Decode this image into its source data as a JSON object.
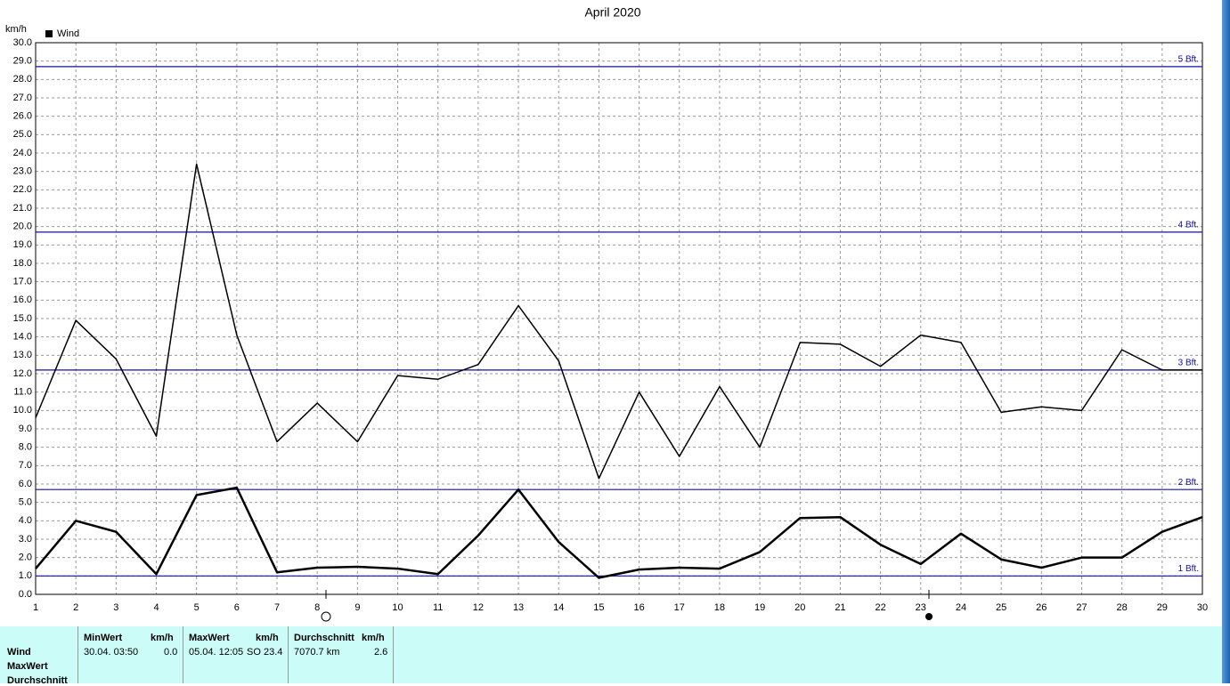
{
  "chart_data": {
    "type": "line",
    "title": "April 2020",
    "y_label": "km/h",
    "x": [
      1,
      2,
      3,
      4,
      5,
      6,
      7,
      8,
      9,
      10,
      11,
      12,
      13,
      14,
      15,
      16,
      17,
      18,
      19,
      20,
      21,
      22,
      23,
      24,
      25,
      26,
      27,
      28,
      29,
      30
    ],
    "xlim": [
      1,
      30
    ],
    "xticks": [
      1,
      2,
      3,
      4,
      5,
      6,
      7,
      8,
      9,
      10,
      11,
      12,
      13,
      14,
      15,
      16,
      17,
      18,
      19,
      20,
      21,
      22,
      23,
      24,
      25,
      26,
      27,
      28,
      29,
      30
    ],
    "ylim": [
      0,
      30
    ],
    "yticks": [
      {
        "value": 0,
        "label": "0.0"
      },
      {
        "value": 1,
        "label": "1.0"
      },
      {
        "value": 2,
        "label": "2.0"
      },
      {
        "value": 3,
        "label": "3.0"
      },
      {
        "value": 4,
        "label": "4.0"
      },
      {
        "value": 5,
        "label": "5.0"
      },
      {
        "value": 6,
        "label": "6.0"
      },
      {
        "value": 7,
        "label": "7.0"
      },
      {
        "value": 8,
        "label": "8.0"
      },
      {
        "value": 9,
        "label": "9.0"
      },
      {
        "value": 10,
        "label": "10.0"
      },
      {
        "value": 11,
        "label": "11.0"
      },
      {
        "value": 12,
        "label": "12.0"
      },
      {
        "value": 13,
        "label": "13.0"
      },
      {
        "value": 14,
        "label": "14.0"
      },
      {
        "value": 15,
        "label": "15.0"
      },
      {
        "value": 16,
        "label": "16.0"
      },
      {
        "value": 17,
        "label": "17.0"
      },
      {
        "value": 18,
        "label": "18.0"
      },
      {
        "value": 19,
        "label": "19.0"
      },
      {
        "value": 20,
        "label": "20.0"
      },
      {
        "value": 21,
        "label": "21.0"
      },
      {
        "value": 22,
        "label": "22.0"
      },
      {
        "value": 23,
        "label": "23.0"
      },
      {
        "value": 24,
        "label": "24.0"
      },
      {
        "value": 25,
        "label": "25.0"
      },
      {
        "value": 26,
        "label": "26.0"
      },
      {
        "value": 27,
        "label": "27.0"
      },
      {
        "value": 28,
        "label": "28.0"
      },
      {
        "value": 29,
        "label": "29.0"
      },
      {
        "value": 30,
        "label": "30.0"
      }
    ],
    "grid": true,
    "series": [
      {
        "name": "Wind",
        "color": "#000000",
        "values": [
          1.4,
          4.0,
          3.4,
          1.1,
          5.4,
          5.8,
          1.2,
          1.45,
          1.5,
          1.4,
          1.1,
          3.2,
          5.7,
          2.85,
          0.9,
          1.35,
          1.45,
          1.4,
          2.3,
          4.15,
          4.2,
          2.7,
          1.65,
          3.3,
          1.9,
          1.45,
          2.0,
          2.0,
          3.4,
          4.2
        ]
      },
      {
        "color": "#000000",
        "values": [
          9.6,
          14.9,
          12.8,
          8.6,
          23.4,
          14.1,
          8.3,
          10.4,
          8.3,
          11.9,
          11.7,
          12.5,
          15.7,
          12.7,
          6.3,
          11.0,
          7.5,
          11.3,
          8.0,
          13.7,
          13.6,
          12.4,
          14.1,
          13.7,
          9.9,
          10.2,
          10.0,
          13.3,
          12.2,
          12.2
        ]
      }
    ],
    "reference_lines": [
      {
        "value": 1.0,
        "label": "1 Bft."
      },
      {
        "value": 5.7,
        "label": "2 Bft."
      },
      {
        "value": 12.2,
        "label": "3 Bft."
      },
      {
        "value": 19.7,
        "label": "4 Bft."
      },
      {
        "value": 28.7,
        "label": "5 Bft."
      }
    ],
    "reference_color": "#1010a0"
  },
  "stats": {
    "row_labels": [
      "Wind",
      "MaxWert",
      "Durchschnitt"
    ],
    "min": {
      "title": "MinWert",
      "unit": "km/h",
      "date": "30.04.  03:50",
      "value": "0.0"
    },
    "max": {
      "title": "MaxWert",
      "unit": "km/h",
      "date": "05.04.  12:05",
      "dir": "SO",
      "value": "23.4"
    },
    "avg": {
      "title": "Durchschnitt",
      "unit": "km/h",
      "distance": "7070.7 km",
      "value": "2.6"
    }
  }
}
